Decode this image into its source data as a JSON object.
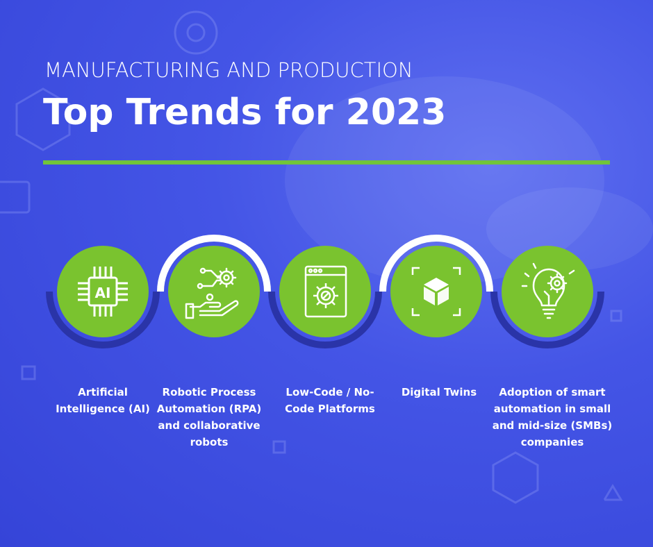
{
  "header": {
    "kicker": "MANUFACTURING AND PRODUCTION",
    "title": "Top Trends for 2023"
  },
  "colors": {
    "background": "#4455e6",
    "accent_green": "#7ac32f",
    "dark_arc": "#2a34a8",
    "white": "#ffffff"
  },
  "trends": [
    {
      "icon": "ai-chip-icon",
      "label": "Artificial Intelligence (AI)",
      "chip_text": "AI"
    },
    {
      "icon": "robotic-hand-gears-icon",
      "label": "Robotic Process Automation (RPA) and collaborative robots"
    },
    {
      "icon": "browser-gear-icon",
      "label": "Low-Code / No-Code Platforms"
    },
    {
      "icon": "cube-frame-icon",
      "label": "Digital Twins"
    },
    {
      "icon": "lightbulb-gear-icon",
      "label": "Adoption of smart automation in small and mid-size (SMBs) companies"
    }
  ]
}
